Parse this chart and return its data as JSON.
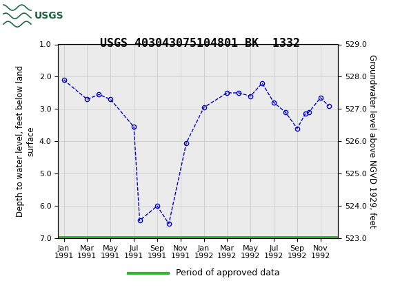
{
  "title": "USGS 403043075104801 BK  1332",
  "ylabel_left": "Depth to water level, feet below land\nsurface",
  "ylabel_right": "Groundwater level above NGVD 1929, feet",
  "ylim_left": [
    7.0,
    1.0
  ],
  "ylim_right": [
    523.0,
    529.0
  ],
  "yticks_left": [
    1.0,
    2.0,
    3.0,
    4.0,
    5.0,
    6.0,
    7.0
  ],
  "yticks_right": [
    523.0,
    524.0,
    525.0,
    526.0,
    527.0,
    528.0,
    529.0
  ],
  "xtick_positions": [
    0,
    2,
    4,
    6,
    8,
    10,
    12,
    14,
    16,
    18,
    20,
    22
  ],
  "xtick_labels": [
    "Jan\n1991",
    "Mar\n1991",
    "May\n1991",
    "Jul\n1991",
    "Sep\n1991",
    "Nov\n1991",
    "Jan\n1992",
    "Mar\n1992",
    "May\n1992",
    "Jul\n1992",
    "Sep\n1992",
    "Nov\n1992"
  ],
  "px": [
    0,
    2,
    3,
    4,
    6,
    6.5,
    8,
    9,
    10.5,
    12,
    14,
    15,
    16,
    17,
    18,
    19,
    20,
    20.7,
    21,
    22,
    22.7
  ],
  "py": [
    2.1,
    2.7,
    2.55,
    2.7,
    3.55,
    6.45,
    6.0,
    6.55,
    4.05,
    2.95,
    2.5,
    2.5,
    2.6,
    2.2,
    2.8,
    3.1,
    3.6,
    3.15,
    3.1,
    2.65,
    2.9
  ],
  "header_color": "#1a6b3c",
  "line_color": "#0000cc",
  "marker_color": "#0000cc",
  "legend_line_color": "#2db82d",
  "bg_color": "#ffffff",
  "plot_bg_color": "#ebebeb",
  "grid_color": "#cccccc",
  "title_fontsize": 12,
  "axis_label_fontsize": 8.5,
  "tick_fontsize": 8,
  "legend_label": "Period of approved data",
  "xlim": [
    -0.5,
    23.5
  ]
}
